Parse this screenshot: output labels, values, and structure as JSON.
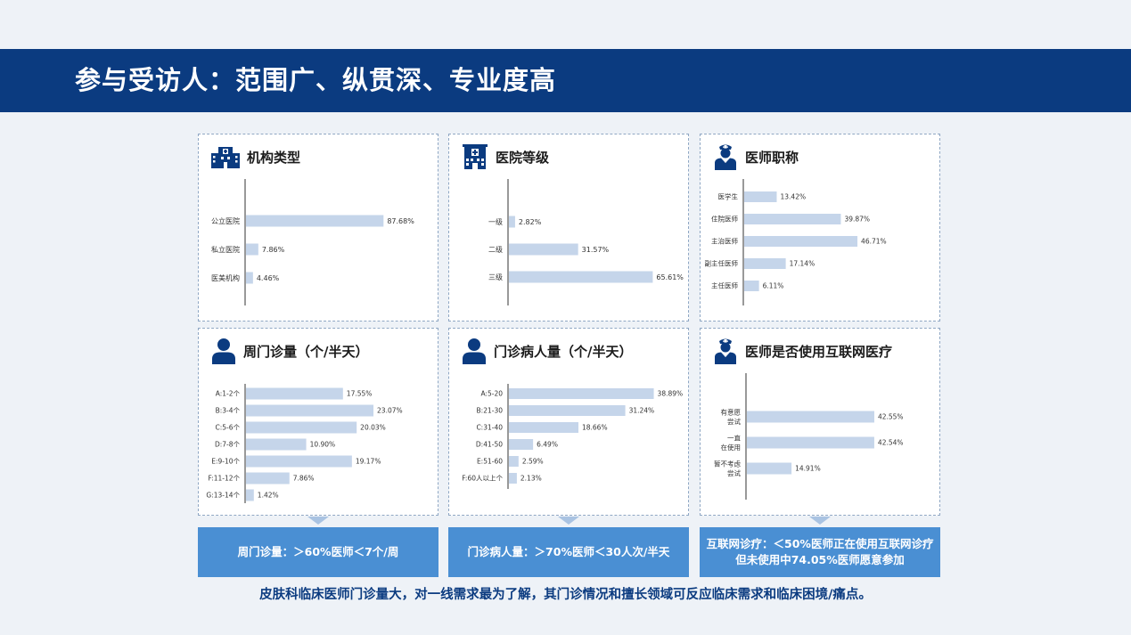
{
  "header": {
    "title": "参与受访人：范围广、纵贯深、专业度高"
  },
  "panels": [
    {
      "title": "机构类型",
      "icon": "hospital-building-icon"
    },
    {
      "title": "医院等级",
      "icon": "hospital-icon"
    },
    {
      "title": "医师职称",
      "icon": "doctor-icon"
    },
    {
      "title": "周门诊量（个/半天）",
      "icon": "person-icon"
    },
    {
      "title": "门诊病人量（个/半天）",
      "icon": "person-icon"
    },
    {
      "title": "医师是否使用互联网医疗",
      "icon": "doctor-icon"
    }
  ],
  "summaries": [
    {
      "line1": "周门诊量：＞60%医师＜7个/周",
      "line2": ""
    },
    {
      "line1": "门诊病人量：＞70%医师＜30人次/半天",
      "line2": ""
    },
    {
      "line1": "互联网诊疗：＜50%医师正在使用互联网诊疗",
      "line2": "但未使用中74.05%医师愿意参加"
    }
  ],
  "footer": {
    "note": "皮肤科临床医师门诊量大，对一线需求最为了解，其门诊情况和擅长领域可反应临床需求和临床困境/痛点。"
  },
  "colors": {
    "bar": "#c5d5ea",
    "header": "#0b3b80",
    "summary": "#4a8fd3",
    "icon": "#0b3b80"
  },
  "chart_data": [
    {
      "type": "bar",
      "orientation": "horizontal",
      "title": "机构类型",
      "categories": [
        "公立医院",
        "私立医院",
        "医美机构"
      ],
      "values": [
        87.68,
        7.86,
        4.46
      ],
      "labels": [
        "87.68%",
        "7.86%",
        "4.46%"
      ]
    },
    {
      "type": "bar",
      "orientation": "horizontal",
      "title": "医院等级",
      "categories": [
        "一级",
        "二级",
        "三级"
      ],
      "values": [
        2.82,
        31.57,
        65.61
      ],
      "labels": [
        "2.82%",
        "31.57%",
        "65.61%"
      ]
    },
    {
      "type": "bar",
      "orientation": "horizontal",
      "title": "医师职称",
      "categories": [
        "医学生",
        "住院医师",
        "主治医师",
        "副主任医师",
        "主任医师"
      ],
      "values": [
        13.42,
        39.87,
        46.71,
        17.14,
        6.11
      ],
      "labels": [
        "13.42%",
        "39.87%",
        "46.71%",
        "17.14%",
        "6.11%"
      ]
    },
    {
      "type": "bar",
      "orientation": "horizontal",
      "title": "周门诊量（个/半天）",
      "categories": [
        "A:1-2个",
        "B:3-4个",
        "C:5-6个",
        "D:7-8个",
        "E:9-10个",
        "F:11-12个",
        "G:13-14个"
      ],
      "values": [
        17.55,
        23.07,
        20.03,
        10.9,
        19.17,
        7.86,
        1.42
      ],
      "labels": [
        "17.55%",
        "23.07%",
        "20.03%",
        "10.90%",
        "19.17%",
        "7.86%",
        "1.42%"
      ]
    },
    {
      "type": "bar",
      "orientation": "horizontal",
      "title": "门诊病人量（个/半天）",
      "categories": [
        "A:5-20",
        "B:21-30",
        "C:31-40",
        "D:41-50",
        "E:51-60",
        "F:60人以上个"
      ],
      "values": [
        38.89,
        31.24,
        18.66,
        6.49,
        2.59,
        2.13
      ],
      "labels": [
        "38.89%",
        "31.24%",
        "18.66%",
        "6.49%",
        "2.59%",
        "2.13%"
      ]
    },
    {
      "type": "bar",
      "orientation": "horizontal",
      "title": "医师是否使用互联网医疗",
      "categories": [
        [
          "有意愿",
          "尝试"
        ],
        [
          "一直",
          "在使用"
        ],
        [
          "暂不考虑",
          "尝试"
        ]
      ],
      "values": [
        42.55,
        42.54,
        14.91
      ],
      "labels": [
        "42.55%",
        "42.54%",
        "14.91%"
      ]
    }
  ]
}
